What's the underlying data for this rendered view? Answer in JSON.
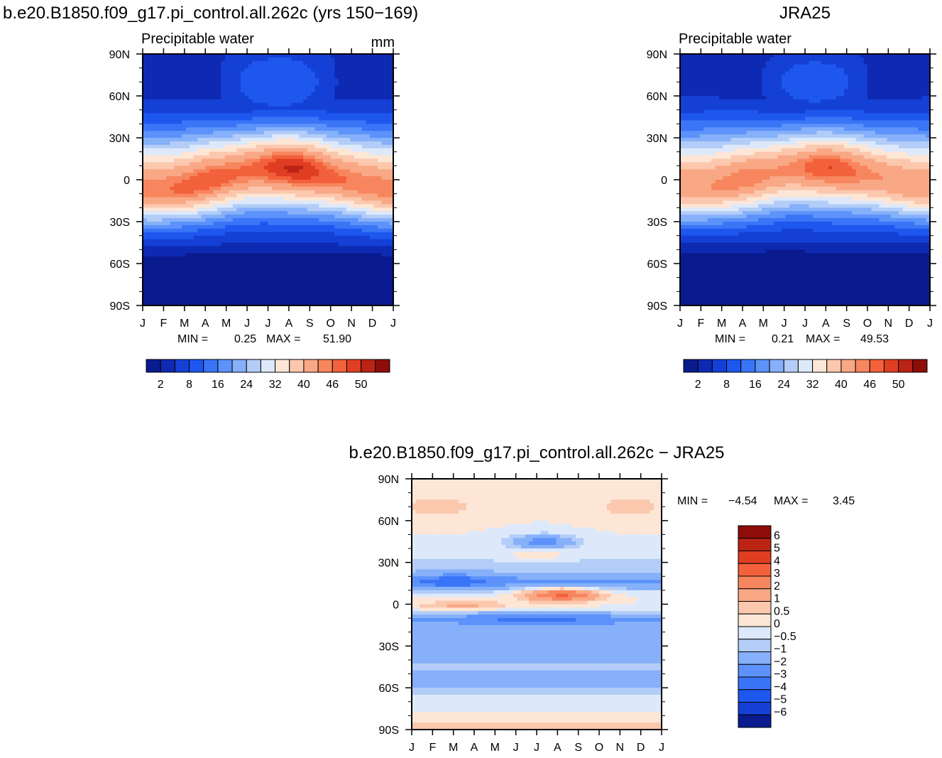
{
  "chart_data": [
    {
      "type": "heatmap",
      "title": "b.e20.B1850.f09_g17.pi_control.all.262c (yrs 150−169)",
      "subtitle": "Precipitable water",
      "units": "mm",
      "stats": {
        "min_label": "MIN =",
        "min": "0.25",
        "max_label": "MAX =",
        "max": "51.90"
      },
      "x_tick_labels": [
        "J",
        "F",
        "M",
        "A",
        "M",
        "J",
        "J",
        "A",
        "S",
        "O",
        "N",
        "D",
        "J"
      ],
      "y_tick_labels": [
        "90N",
        "60N",
        "30N",
        "0",
        "30S",
        "60S",
        "90S"
      ],
      "ylim": [
        -90,
        90
      ],
      "field": {
        "peak": 51.9,
        "itcz_lat_jan": -8,
        "itcz_lat_jul": 9,
        "north_pole_min": 3,
        "south_pole_min": 0.25
      },
      "colorbar": {
        "labels": [
          "2",
          "8",
          "16",
          "24",
          "32",
          "40",
          "46",
          "50"
        ],
        "colors": [
          "#0a1b8f",
          "#0e2ab2",
          "#1440d6",
          "#1e57ee",
          "#3a75f7",
          "#5c92fa",
          "#86b0f9",
          "#b3cdf8",
          "#dde9fb",
          "#fde6d6",
          "#fbc8ae",
          "#f9a886",
          "#f7865e",
          "#f2613b",
          "#e03e22",
          "#bb2314",
          "#8e0d0a"
        ],
        "levels": [
          2,
          4,
          8,
          12,
          16,
          20,
          24,
          28,
          32,
          36,
          40,
          44,
          46,
          48,
          50,
          52
        ]
      }
    },
    {
      "type": "heatmap",
      "title": "JRA25",
      "subtitle": "Precipitable water",
      "stats": {
        "min_label": "MIN =",
        "min": "0.21",
        "max_label": "MAX =",
        "max": "49.53"
      },
      "x_tick_labels": [
        "J",
        "F",
        "M",
        "A",
        "M",
        "J",
        "J",
        "A",
        "S",
        "O",
        "N",
        "D",
        "J"
      ],
      "y_tick_labels": [
        "90N",
        "60N",
        "30N",
        "0",
        "30S",
        "60S",
        "90S"
      ],
      "ylim": [
        -90,
        90
      ],
      "field": {
        "peak": 49.53,
        "itcz_lat_jan": -6,
        "itcz_lat_jul": 9,
        "north_pole_min": 2,
        "south_pole_min": 0.21
      },
      "colorbar": {
        "labels": [
          "2",
          "8",
          "16",
          "24",
          "32",
          "40",
          "46",
          "50"
        ],
        "colors": [
          "#0a1b8f",
          "#0e2ab2",
          "#1440d6",
          "#1e57ee",
          "#3a75f7",
          "#5c92fa",
          "#86b0f9",
          "#b3cdf8",
          "#dde9fb",
          "#fde6d6",
          "#fbc8ae",
          "#f9a886",
          "#f7865e",
          "#f2613b",
          "#e03e22",
          "#bb2314",
          "#8e0d0a"
        ],
        "levels": [
          2,
          4,
          8,
          12,
          16,
          20,
          24,
          28,
          32,
          36,
          40,
          44,
          46,
          48,
          50,
          52
        ]
      }
    },
    {
      "type": "heatmap",
      "title": "b.e20.B1850.f09_g17.pi_control.all.262c − JRA25",
      "stats": {
        "min_label": "MIN =",
        "min": "−4.54",
        "max_label": "MAX =",
        "max": "3.45"
      },
      "x_tick_labels": [
        "J",
        "F",
        "M",
        "A",
        "M",
        "J",
        "J",
        "A",
        "S",
        "O",
        "N",
        "D",
        "J"
      ],
      "y_tick_labels": [
        "90N",
        "60N",
        "30N",
        "0",
        "30S",
        "60S",
        "90S"
      ],
      "ylim": [
        -90,
        90
      ],
      "colorbar": {
        "labels": [
          "6",
          "5",
          "4",
          "3",
          "2",
          "1",
          "0.5",
          "0",
          "−0.5",
          "−1",
          "−2",
          "−3",
          "−4",
          "−5",
          "−6"
        ],
        "colors": [
          "#8e0d0a",
          "#bb2314",
          "#e03e22",
          "#f2613b",
          "#f7865e",
          "#f9a886",
          "#fbc8ae",
          "#fde6d6",
          "#dde9fb",
          "#b3cdf8",
          "#86b0f9",
          "#5c92fa",
          "#3a75f7",
          "#1e57ee",
          "#1440d6",
          "#0a1b8f"
        ],
        "levels": [
          6,
          5,
          4,
          3,
          2,
          1,
          0.5,
          0,
          -0.5,
          -1,
          -2,
          -3,
          -4,
          -5,
          -6
        ]
      }
    }
  ]
}
